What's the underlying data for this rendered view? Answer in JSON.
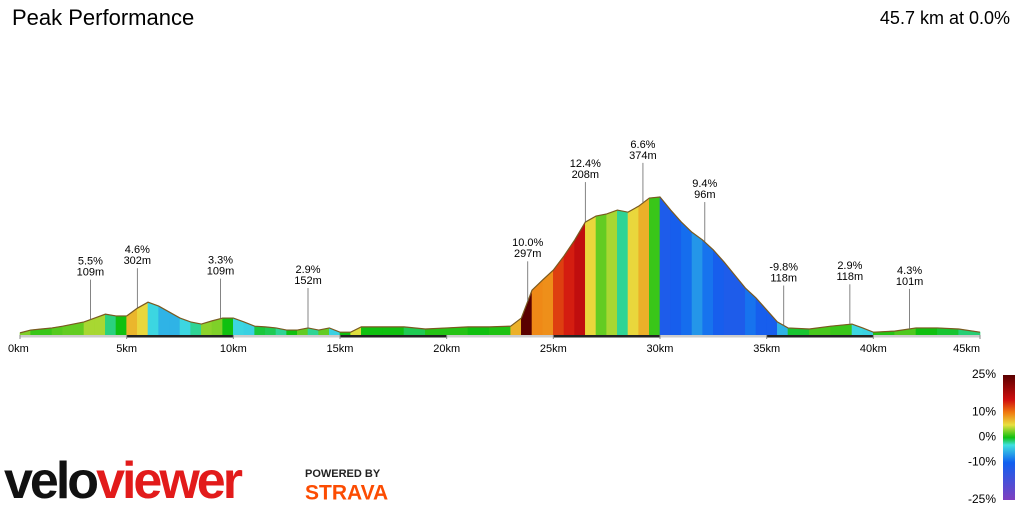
{
  "chart_data": {
    "type": "elevation-profile",
    "title": "Peak Performance",
    "summary": "45.7 km at 0.0%",
    "x": [
      0,
      0.5,
      1,
      1.5,
      2,
      2.5,
      3,
      3.5,
      4,
      4.5,
      5,
      5.5,
      6,
      6.5,
      7,
      7.5,
      8,
      8.5,
      9,
      9.5,
      10,
      10.5,
      11,
      11.5,
      12,
      12.5,
      13,
      13.5,
      14,
      14.5,
      15,
      15.5,
      16,
      17,
      18,
      19,
      20,
      21,
      22,
      23,
      23.5,
      24,
      24.5,
      25,
      25.5,
      26,
      26.5,
      27,
      27.5,
      28,
      28.5,
      29,
      29.5,
      30,
      30.5,
      31,
      31.5,
      32,
      32.5,
      33,
      33.5,
      34,
      34.5,
      35,
      35.5,
      36,
      37,
      38,
      39,
      39.5,
      40,
      41,
      42,
      43,
      44,
      45
    ],
    "values": [
      6,
      14,
      17,
      20,
      25,
      31,
      37,
      48,
      59,
      54,
      54,
      76,
      93,
      82,
      65,
      48,
      37,
      31,
      40,
      48,
      48,
      37,
      25,
      23,
      20,
      14,
      14,
      20,
      14,
      20,
      8,
      8,
      23,
      23,
      23,
      17,
      20,
      23,
      23,
      25,
      48,
      127,
      156,
      184,
      224,
      269,
      320,
      337,
      343,
      354,
      348,
      365,
      388,
      391,
      354,
      320,
      291,
      269,
      241,
      207,
      170,
      133,
      105,
      71,
      37,
      20,
      17,
      25,
      31,
      20,
      8,
      11,
      20,
      20,
      17,
      8
    ],
    "xlim": [
      0,
      45
    ],
    "ylim": [
      0,
      850
    ],
    "xticks": [
      {
        "value": 0,
        "label": "0km"
      },
      {
        "value": 5,
        "label": "5km"
      },
      {
        "value": 10,
        "label": "10km"
      },
      {
        "value": 15,
        "label": "15km"
      },
      {
        "value": 20,
        "label": "20km"
      },
      {
        "value": 25,
        "label": "25km"
      },
      {
        "value": 30,
        "label": "30km"
      },
      {
        "value": 35,
        "label": "35km"
      },
      {
        "value": 40,
        "label": "40km"
      },
      {
        "value": 45,
        "label": "45km"
      }
    ],
    "annotations": [
      {
        "x": 3.3,
        "grade": "5.5%",
        "length": "109m"
      },
      {
        "x": 5.5,
        "grade": "4.6%",
        "length": "302m"
      },
      {
        "x": 9.4,
        "grade": "3.3%",
        "length": "109m"
      },
      {
        "x": 13.5,
        "grade": "2.9%",
        "length": "152m"
      },
      {
        "x": 23.8,
        "grade": "10.0%",
        "length": "297m"
      },
      {
        "x": 26.5,
        "grade": "12.4%",
        "length": "208m"
      },
      {
        "x": 29.2,
        "grade": "6.6%",
        "length": "374m"
      },
      {
        "x": 32.1,
        "grade": "9.4%",
        "length": "96m"
      },
      {
        "x": 35.8,
        "grade": "-9.8%",
        "length": "118m"
      },
      {
        "x": 38.9,
        "grade": "2.9%",
        "length": "118m"
      },
      {
        "x": 41.7,
        "grade": "4.3%",
        "length": "101m"
      }
    ],
    "colorscale": [
      [
        25,
        "#5a0000"
      ],
      [
        15,
        "#d01010"
      ],
      [
        10,
        "#f07a10"
      ],
      [
        5,
        "#e8e040"
      ],
      [
        0,
        "#10c010"
      ],
      [
        -3,
        "#40e0e0"
      ],
      [
        -10,
        "#1060f0"
      ],
      [
        -25,
        "#8040c0"
      ]
    ],
    "legend_ticks": [
      {
        "value": 25,
        "label": "25%"
      },
      {
        "value": 10,
        "label": "10%"
      },
      {
        "value": 0,
        "label": "0%"
      },
      {
        "value": -10,
        "label": "-10%"
      },
      {
        "value": -25,
        "label": "-25%"
      }
    ],
    "logo": {
      "velo": "velo",
      "viewer": "viewer",
      "powered": "POWERED BY",
      "strava": "STRAVA"
    }
  }
}
